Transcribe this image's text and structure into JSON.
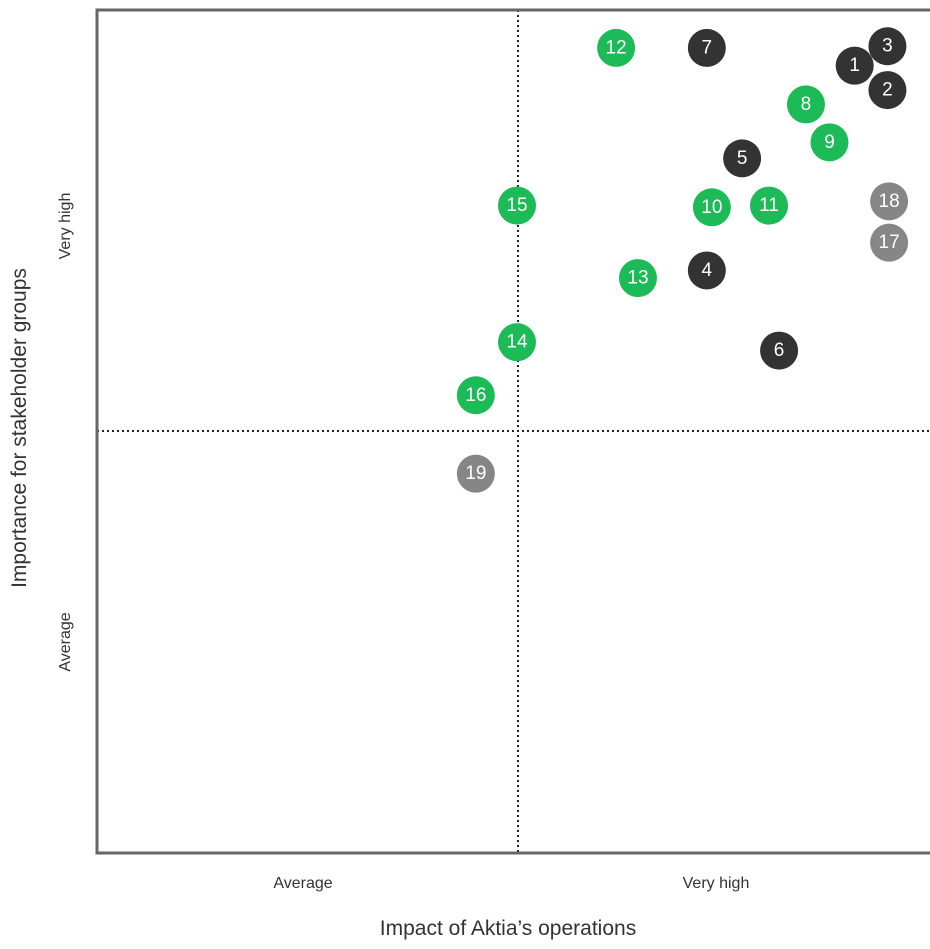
{
  "chart_data": {
    "type": "scatter",
    "title": "",
    "xlabel": "Impact of Aktia’s operations",
    "ylabel": "Importance for stakeholder groups",
    "x_ticks": [
      "Average",
      "Very high"
    ],
    "y_ticks": [
      "Average",
      "Very high"
    ],
    "xlim": [
      0,
      100
    ],
    "ylim": [
      0,
      100
    ],
    "quadrant_divider": {
      "x": 50,
      "y": 50
    },
    "colors": {
      "dark": "#333333",
      "green": "#1dbb58",
      "grey": "#868686"
    },
    "points": [
      {
        "label": "1",
        "x": 90.2,
        "y": 93.4,
        "color": "dark"
      },
      {
        "label": "2",
        "x": 94.1,
        "y": 90.5,
        "color": "dark"
      },
      {
        "label": "3",
        "x": 94.1,
        "y": 95.7,
        "color": "dark"
      },
      {
        "label": "4",
        "x": 72.6,
        "y": 69.1,
        "color": "dark"
      },
      {
        "label": "5",
        "x": 76.8,
        "y": 82.4,
        "color": "dark"
      },
      {
        "label": "6",
        "x": 81.2,
        "y": 59.6,
        "color": "dark"
      },
      {
        "label": "7",
        "x": 72.6,
        "y": 95.5,
        "color": "dark"
      },
      {
        "label": "8",
        "x": 84.4,
        "y": 88.8,
        "color": "green"
      },
      {
        "label": "9",
        "x": 87.2,
        "y": 84.3,
        "color": "green"
      },
      {
        "label": "10",
        "x": 73.2,
        "y": 76.6,
        "color": "green"
      },
      {
        "label": "11",
        "x": 80.0,
        "y": 76.8,
        "color": "green"
      },
      {
        "label": "12",
        "x": 61.8,
        "y": 95.5,
        "color": "green"
      },
      {
        "label": "13",
        "x": 64.4,
        "y": 68.2,
        "color": "green"
      },
      {
        "label": "14",
        "x": 50.0,
        "y": 60.6,
        "color": "green"
      },
      {
        "label": "15",
        "x": 50.0,
        "y": 76.8,
        "color": "green"
      },
      {
        "label": "16",
        "x": 45.1,
        "y": 54.3,
        "color": "green"
      },
      {
        "label": "17",
        "x": 94.3,
        "y": 72.4,
        "color": "grey"
      },
      {
        "label": "18",
        "x": 94.3,
        "y": 77.3,
        "color": "grey"
      },
      {
        "label": "19",
        "x": 45.1,
        "y": 45.0,
        "color": "grey"
      }
    ]
  }
}
